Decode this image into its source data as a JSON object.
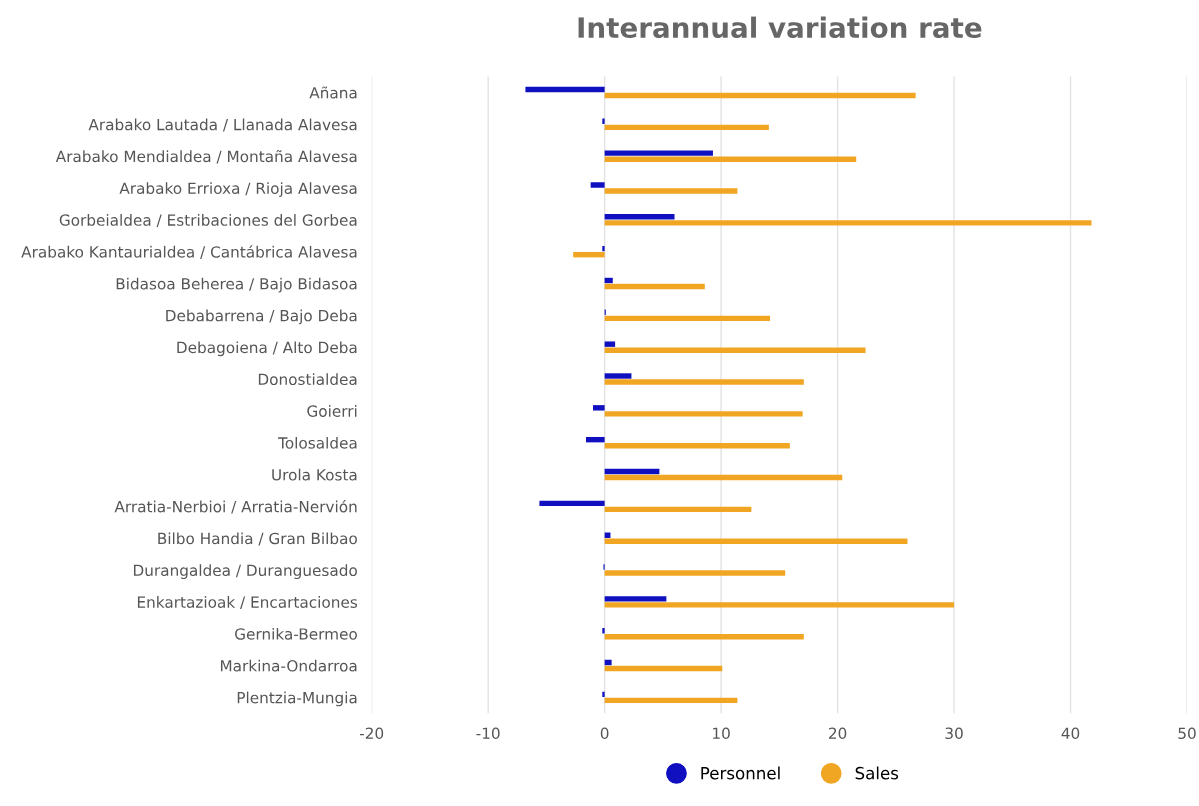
{
  "chart_data": {
    "type": "bar",
    "orientation": "horizontal",
    "title": "Interannual variation rate",
    "categories": [
      "Añana",
      "Arabako Lautada / Llanada Alavesa",
      "Arabako Mendialdea / Montaña Alavesa",
      "Arabako Errioxa / Rioja Alavesa",
      "Gorbeialdea / Estribaciones del Gorbea",
      "Arabako Kantaurialdea / Cantábrica Alavesa",
      "Bidasoa Beherea / Bajo Bidasoa",
      "Debabarrena / Bajo Deba",
      "Debagoiena / Alto Deba",
      "Donostialdea",
      "Goierri",
      "Tolosaldea",
      "Urola Kosta",
      "Arratia-Nerbioi / Arratia-Nervión",
      "Bilbo Handia / Gran Bilbao",
      "Durangaldea / Duranguesado",
      "Enkartazioak / Encartaciones",
      "Gernika-Bermeo",
      "Markina-Ondarroa",
      "Plentzia-Mungia"
    ],
    "series": [
      {
        "name": "Personnel",
        "color": "#1010c0",
        "values": [
          -6.8,
          -0.2,
          9.3,
          -1.2,
          6.0,
          -0.2,
          0.7,
          0.1,
          0.9,
          2.3,
          -1.0,
          -1.6,
          4.7,
          -5.6,
          0.5,
          -0.1,
          5.3,
          -0.2,
          0.6,
          -0.2
        ]
      },
      {
        "name": "Sales",
        "color": "#f0a622",
        "values": [
          26.7,
          14.1,
          21.6,
          11.4,
          41.8,
          -2.7,
          8.6,
          14.2,
          22.4,
          17.1,
          17.0,
          15.9,
          20.4,
          12.6,
          26.0,
          15.5,
          30.0,
          17.1,
          10.1,
          11.4
        ]
      }
    ],
    "xlim": [
      -20,
      50
    ],
    "xticks": [
      -20,
      -10,
      0,
      10,
      20,
      30,
      40,
      50
    ],
    "grid": "x",
    "legend": "bottom",
    "marker": "circle"
  }
}
